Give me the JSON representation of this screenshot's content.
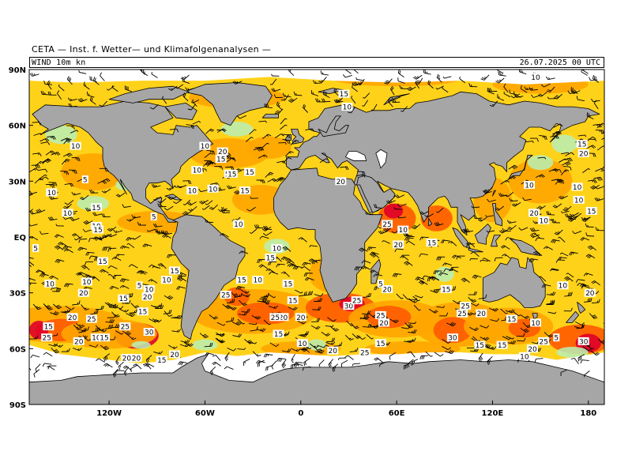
{
  "header": {
    "title": "CETA — Inst. f. Wetter— und Klimafolgenanalysen —",
    "variable": "WIND  10m  kn",
    "datetime": "26.07.2025 00 UTC"
  },
  "map": {
    "latitude_labels": [
      "90N",
      "60N",
      "30N",
      "EQ",
      "30S",
      "60S",
      "90S"
    ],
    "longitude_labels": [
      "120W",
      "60W",
      "0",
      "60E",
      "120E",
      "180"
    ],
    "colors": {
      "land": "#a6a6a6",
      "ice": "#ffffff",
      "calm": "#b7f0b7",
      "light": "#ffd21a",
      "moderate": "#ffa500",
      "strong": "#ff5a00",
      "storm": "#e0002a",
      "coast": "#000000"
    },
    "speed_labels": [
      {
        "v": "10",
        "lon": 147,
        "lat": 86
      },
      {
        "v": "15",
        "lon": 27,
        "lat": 77
      },
      {
        "v": "10",
        "lon": 29,
        "lat": 70
      },
      {
        "v": "10",
        "lon": -141,
        "lat": 49
      },
      {
        "v": "10",
        "lon": -60,
        "lat": 49
      },
      {
        "v": "20",
        "lon": -49,
        "lat": 46
      },
      {
        "v": "15",
        "lon": -50,
        "lat": 42
      },
      {
        "v": "5",
        "lon": -46,
        "lat": 34
      },
      {
        "v": "15",
        "lon": -43,
        "lat": 34
      },
      {
        "v": "15",
        "lon": -32,
        "lat": 35
      },
      {
        "v": "10",
        "lon": -65,
        "lat": 36
      },
      {
        "v": "10",
        "lon": -68,
        "lat": 25
      },
      {
        "v": "10",
        "lon": -55,
        "lat": 26
      },
      {
        "v": "15",
        "lon": -35,
        "lat": 25
      },
      {
        "v": "10",
        "lon": -156,
        "lat": 24
      },
      {
        "v": "5",
        "lon": -135,
        "lat": 31
      },
      {
        "v": "10",
        "lon": -146,
        "lat": 13
      },
      {
        "v": "15",
        "lon": -128,
        "lat": 16
      },
      {
        "v": "10",
        "lon": -128,
        "lat": 6
      },
      {
        "v": "15",
        "lon": -127,
        "lat": 4
      },
      {
        "v": "5",
        "lon": -92,
        "lat": 11
      },
      {
        "v": "10",
        "lon": -39,
        "lat": 7
      },
      {
        "v": "5",
        "lon": -166,
        "lat": -6
      },
      {
        "v": "15",
        "lon": -124,
        "lat": -13
      },
      {
        "v": "15",
        "lon": -79,
        "lat": -18
      },
      {
        "v": "10",
        "lon": -84,
        "lat": -23
      },
      {
        "v": "10",
        "lon": -157,
        "lat": -25
      },
      {
        "v": "10",
        "lon": -134,
        "lat": -24
      },
      {
        "v": "5",
        "lon": -101,
        "lat": -26
      },
      {
        "v": "10",
        "lon": -95,
        "lat": -28
      },
      {
        "v": "20",
        "lon": -136,
        "lat": -30
      },
      {
        "v": "15",
        "lon": -111,
        "lat": -33
      },
      {
        "v": "20",
        "lon": -96,
        "lat": -32
      },
      {
        "v": "15",
        "lon": -99,
        "lat": -40
      },
      {
        "v": "20",
        "lon": -143,
        "lat": -43
      },
      {
        "v": "25",
        "lon": -131,
        "lat": -44
      },
      {
        "v": "25",
        "lon": -110,
        "lat": -48
      },
      {
        "v": "15",
        "lon": -158,
        "lat": -48
      },
      {
        "v": "30",
        "lon": -95,
        "lat": -51
      },
      {
        "v": "25",
        "lon": -159,
        "lat": -54
      },
      {
        "v": "20",
        "lon": -139,
        "lat": -56
      },
      {
        "v": "10",
        "lon": -128,
        "lat": -54
      },
      {
        "v": "15",
        "lon": -123,
        "lat": -54
      },
      {
        "v": "20",
        "lon": -109,
        "lat": -65
      },
      {
        "v": "20",
        "lon": -103,
        "lat": -65
      },
      {
        "v": "15",
        "lon": -87,
        "lat": -66
      },
      {
        "v": "20",
        "lon": -79,
        "lat": -63
      },
      {
        "v": "15",
        "lon": -37,
        "lat": -23
      },
      {
        "v": "10",
        "lon": -27,
        "lat": -23
      },
      {
        "v": "10",
        "lon": -15,
        "lat": -6
      },
      {
        "v": "15",
        "lon": -19,
        "lat": -11
      },
      {
        "v": "15",
        "lon": -8,
        "lat": -25
      },
      {
        "v": "25",
        "lon": -47,
        "lat": -31
      },
      {
        "v": "20",
        "lon": -11,
        "lat": -43
      },
      {
        "v": "15",
        "lon": -5,
        "lat": -34
      },
      {
        "v": "25",
        "lon": -16,
        "lat": -43
      },
      {
        "v": "20",
        "lon": 0,
        "lat": -43
      },
      {
        "v": "15",
        "lon": -14,
        "lat": -52
      },
      {
        "v": "10",
        "lon": 1,
        "lat": -57
      },
      {
        "v": "20",
        "lon": 20,
        "lat": -61
      },
      {
        "v": "25",
        "lon": 40,
        "lat": -62
      },
      {
        "v": "30",
        "lon": 30,
        "lat": -37
      },
      {
        "v": "25",
        "lon": 35,
        "lat": -34
      },
      {
        "v": "15",
        "lon": 50,
        "lat": -57
      },
      {
        "v": "25",
        "lon": 50,
        "lat": -42
      },
      {
        "v": "20",
        "lon": 52,
        "lat": -46
      },
      {
        "v": "20",
        "lon": 54,
        "lat": -28
      },
      {
        "v": "5",
        "lon": 50,
        "lat": -25
      },
      {
        "v": "25",
        "lon": 54,
        "lat": 7
      },
      {
        "v": "10",
        "lon": 64,
        "lat": 4
      },
      {
        "v": "20",
        "lon": 61,
        "lat": -4
      },
      {
        "v": "15",
        "lon": 82,
        "lat": -3
      },
      {
        "v": "15",
        "lon": 91,
        "lat": -28
      },
      {
        "v": "25",
        "lon": 103,
        "lat": -37
      },
      {
        "v": "25",
        "lon": 101,
        "lat": -41
      },
      {
        "v": "20",
        "lon": 113,
        "lat": -41
      },
      {
        "v": "30",
        "lon": 95,
        "lat": -54
      },
      {
        "v": "15",
        "lon": 112,
        "lat": -58
      },
      {
        "v": "15",
        "lon": 132,
        "lat": -44
      },
      {
        "v": "15",
        "lon": 126,
        "lat": -58
      },
      {
        "v": "10",
        "lon": 140,
        "lat": -64
      },
      {
        "v": "10",
        "lon": 147,
        "lat": -46
      },
      {
        "v": "20",
        "lon": 145,
        "lat": -60
      },
      {
        "v": "25",
        "lon": 152,
        "lat": -56
      },
      {
        "v": "5",
        "lon": 160,
        "lat": -54
      },
      {
        "v": "30",
        "lon": 177,
        "lat": -56
      },
      {
        "v": "10",
        "lon": 164,
        "lat": -26
      },
      {
        "v": "20",
        "lon": 181,
        "lat": -30
      },
      {
        "v": "10",
        "lon": 143,
        "lat": 28
      },
      {
        "v": "20",
        "lon": 146,
        "lat": 13
      },
      {
        "v": "10",
        "lon": 152,
        "lat": 9
      },
      {
        "v": "10",
        "lon": 173,
        "lat": 27
      },
      {
        "v": "10",
        "lon": 174,
        "lat": 20
      },
      {
        "v": "15",
        "lon": 182,
        "lat": 14
      },
      {
        "v": "15",
        "lon": 176,
        "lat": 50
      },
      {
        "v": "20",
        "lon": 177,
        "lat": 45
      },
      {
        "v": "20",
        "lon": 25,
        "lat": 30
      }
    ],
    "barb_count": 900
  }
}
